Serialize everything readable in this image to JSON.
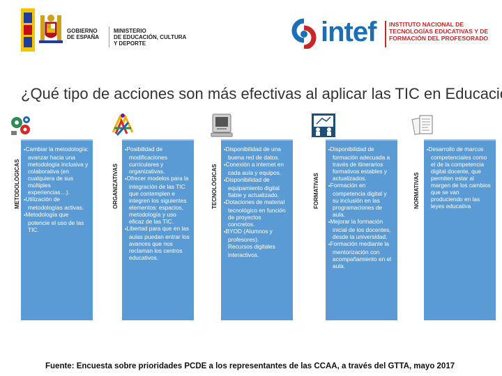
{
  "header": {
    "gov_logo": {
      "line1": "GOBIERNO\nDE ESPAÑA",
      "line2": "MINISTERIO\nDE EDUCACIÓN, CULTURA\nY DEPORTE"
    },
    "intef_logo": {
      "word": "intef",
      "text": "INSTITUTO NACIONAL DE\nTECNOLOGÍAS EDUCATIVAS Y DE\nFORMACIÓN DEL PROFESORADO"
    }
  },
  "title": "¿Qué tipo de acciones son más efectivas al aplicar las TIC en Educación?",
  "categories": [
    {
      "label": "METODOLÓGICAS",
      "icon": "gears-icon",
      "items": [
        {
          "bullet": "▪",
          "text": "Cambiar la metodología: avanzar hacia una metodología inclusiva y colaborativa (en cualquiera de sus múltiples experiencias…)."
        },
        {
          "bullet": "▪",
          "text": "Utilización de metodologías activas."
        },
        {
          "bullet": "▪",
          "text": "Metodología que potencie el uso de las TIC."
        }
      ]
    },
    {
      "label": "ORGANIZATIVAS",
      "icon": "organization-icon",
      "items": [
        {
          "bullet": "▪",
          "text": "Posibilidad de modificaciones curriculares y organizativas."
        },
        {
          "bullet": "▪",
          "text": "Ofrecer modelos para la integración de las TIC que contemplen e integren los siguientes elementos: espacios, metodología y uso eficaz de las TIC."
        },
        {
          "bullet": "▪",
          "text": "Libertad para que en las aulas puedan entrar los avances que nos reclaman los centros educativos."
        }
      ]
    },
    {
      "label": "TECNOLÓGICAS",
      "icon": "computer-icon",
      "items": [
        {
          "bullet": "▪",
          "text": "Disponibilidad de una buena red de datos."
        },
        {
          "bullet": "▪",
          "text": "Conexión a internet en cada aula y equipos."
        },
        {
          "bullet": "▪",
          "text": "Disponibilidad de equipamiento digital fiable y actualizado."
        },
        {
          "bullet": "▪",
          "text": "Dotaciones de material tecnológico en función de proyectos concretos."
        },
        {
          "bullet": "▪",
          "text": "BYOD (Alumnos y profesores)."
        },
        {
          "bullet": "",
          "text": "Recursos digitales interactivos."
        }
      ]
    },
    {
      "label": "FORMATIVAS",
      "icon": "teaching-icon",
      "items": [
        {
          "bullet": "▪",
          "text": "Disponibilidad de formación adecuada a través de itinerarios formativos estables y actualizados."
        },
        {
          "bullet": "▪",
          "text": "Formación en competencia digital y su inclusión en las programaciones de aula."
        },
        {
          "bullet": "▪",
          "text": "Mejorar la formación inicial de los docentes, desde la universidad."
        },
        {
          "bullet": "▪",
          "text": "Formación mediante la mentorización con acompañamiento en el aula."
        }
      ]
    },
    {
      "label": "NORMATIVAS",
      "icon": "documents-icon",
      "items": [
        {
          "bullet": "▪",
          "text": "Desarrollo de marcos competenciales como el de la competencia digital docente, que permiten estar al margen de los cambios que se van produciendo en las leyes educativa"
        }
      ]
    }
  ],
  "source": "Fuente: Encuesta sobre prioridades PCDE a los representantes de las CCAA, a través del GTTA, mayo 2017",
  "colors": {
    "box": "#5b9bd5",
    "title": "#333333",
    "intef_blue": "#1b6fb6",
    "intef_red": "#c62828"
  }
}
